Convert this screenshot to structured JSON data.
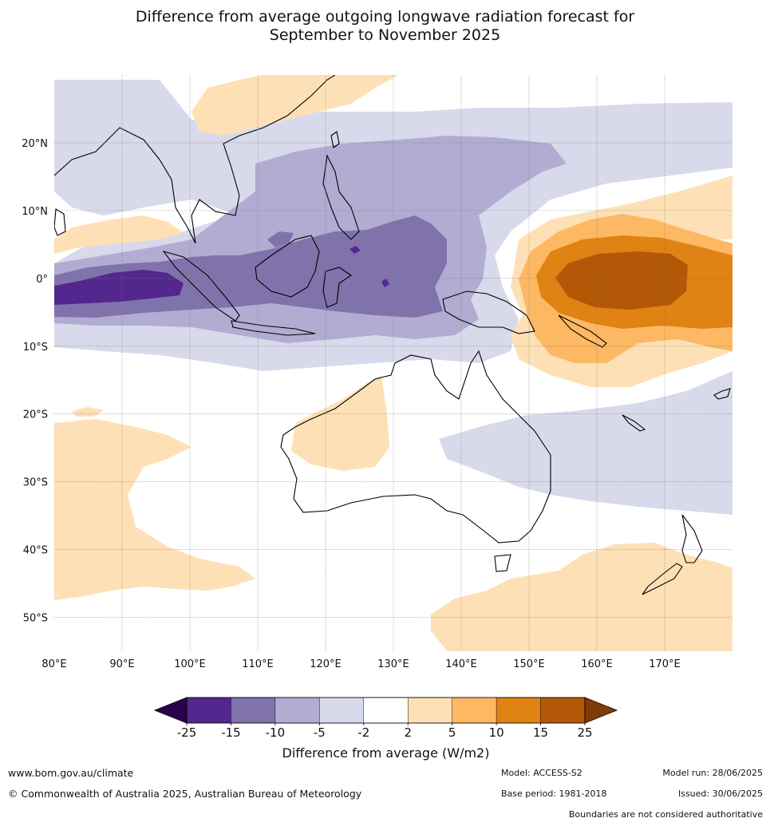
{
  "title": {
    "line1": "Difference from average outgoing longwave radiation forecast for",
    "line2": "September to November 2025"
  },
  "map": {
    "extent": {
      "lon_min": 80,
      "lon_max": 180,
      "lat_min": -55,
      "lat_max": 30
    },
    "lon_ticks": [
      {
        "value": 80,
        "label": "80°E"
      },
      {
        "value": 90,
        "label": "90°E"
      },
      {
        "value": 100,
        "label": "100°E"
      },
      {
        "value": 110,
        "label": "110°E"
      },
      {
        "value": 120,
        "label": "120°E"
      },
      {
        "value": 130,
        "label": "130°E"
      },
      {
        "value": 140,
        "label": "140°E"
      },
      {
        "value": 150,
        "label": "150°E"
      },
      {
        "value": 160,
        "label": "160°E"
      },
      {
        "value": 170,
        "label": "170°E"
      }
    ],
    "lat_ticks": [
      {
        "value": 20,
        "label": "20°N"
      },
      {
        "value": 10,
        "label": "10°N"
      },
      {
        "value": 0,
        "label": "0°"
      },
      {
        "value": -10,
        "label": "10°S"
      },
      {
        "value": -20,
        "label": "20°S"
      },
      {
        "value": -30,
        "label": "30°S"
      },
      {
        "value": -40,
        "label": "40°S"
      },
      {
        "value": -50,
        "label": "50°S"
      }
    ]
  },
  "colorbar": {
    "title": "Difference from average (W/m2)",
    "tick_labels": [
      "-25",
      "-15",
      "-10",
      "-5",
      "-2",
      "2",
      "5",
      "10",
      "15",
      "25"
    ],
    "colors": [
      "#54278f",
      "#8073ac",
      "#b2abd2",
      "#d8daeb",
      "#ffffff",
      "#fee0b6",
      "#fdb863",
      "#e08214",
      "#b35806"
    ],
    "under_color": "#2d004b",
    "over_color": "#7f3b08"
  },
  "footer": {
    "website": "www.bom.gov.au/climate",
    "copyright": "© Commonwealth of Australia 2025, Australian Bureau of Meteorology",
    "model": "Model: ACCESS-S2",
    "base_period": "Base period: 1981-2018",
    "model_run": "Model run: 28/06/2025",
    "issued": "Issued: 30/06/2025",
    "disclaimer": "Boundaries are not considered authoritative"
  }
}
